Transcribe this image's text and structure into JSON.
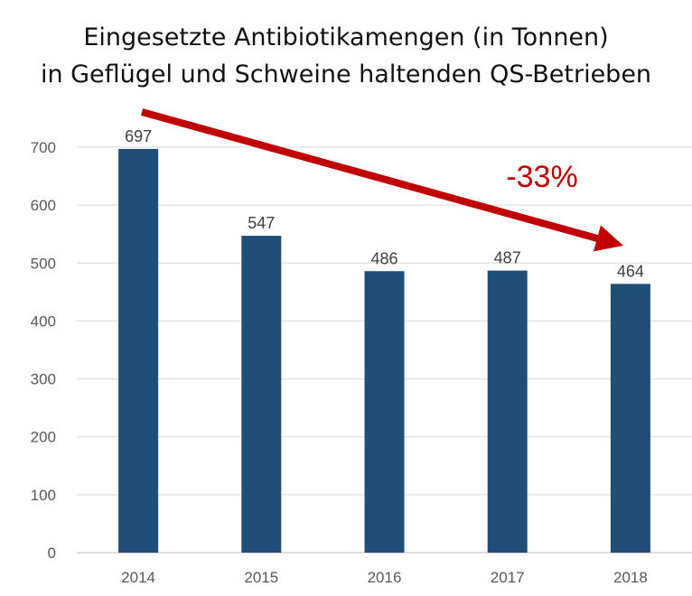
{
  "chart_data": {
    "type": "bar",
    "title_lines": [
      "Eingesetzte Antibiotikamengen (in Tonnen)",
      "in Geflügel und Schweine haltenden QS-Betrieben"
    ],
    "categories": [
      "2014",
      "2015",
      "2016",
      "2017",
      "2018"
    ],
    "values": [
      697,
      547,
      486,
      487,
      464
    ],
    "data_labels": [
      "697",
      "547",
      "486",
      "487",
      "464"
    ],
    "yticks": [
      "0",
      "100",
      "200",
      "300",
      "400",
      "500",
      "600",
      "700"
    ],
    "ylim": [
      0,
      700
    ],
    "xlabel": "",
    "ylabel": "",
    "grid": true,
    "bar_color": "#1F4E79",
    "annotation": {
      "text": "-33%",
      "color": "#C00000",
      "from_category": "2014",
      "to_category": "2018"
    }
  }
}
